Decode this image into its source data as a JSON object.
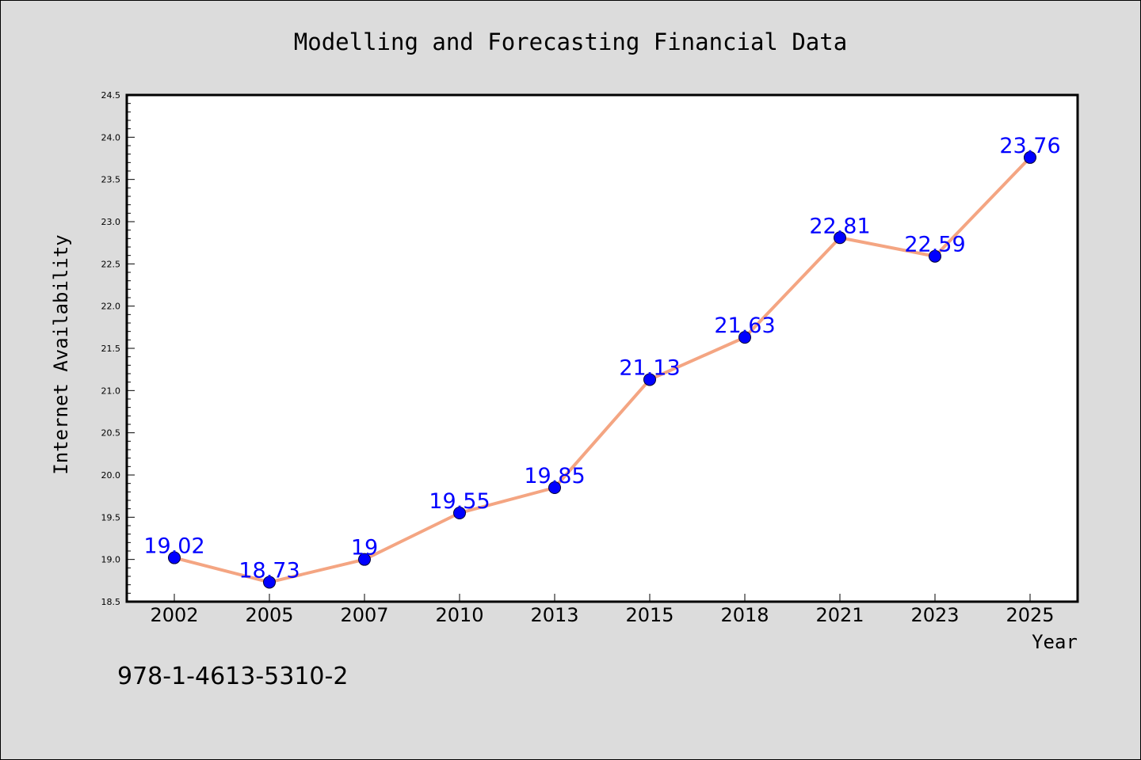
{
  "chart_data": {
    "type": "line",
    "title": "Modelling and Forecasting Financial Data",
    "xlabel": "Year",
    "ylabel": "Internet Availability",
    "categories": [
      "2002",
      "2005",
      "2007",
      "2010",
      "2013",
      "2015",
      "2018",
      "2021",
      "2023",
      "2025"
    ],
    "series": [
      {
        "values": [
          19.02,
          18.73,
          19,
          19.55,
          19.85,
          21.13,
          21.63,
          22.81,
          22.59,
          23.76
        ],
        "line_color": "#f4a582",
        "marker_color": "#0000ff",
        "label_color": "#0000ff"
      }
    ],
    "ylim": [
      18.5,
      24.5
    ],
    "yticks": [
      "18.5",
      "19.0",
      "19.5",
      "20.0",
      "20.5",
      "21.0",
      "21.5",
      "22.0",
      "22.5",
      "23.0",
      "23.5",
      "24.0",
      "24.5"
    ],
    "grid": false,
    "legend": "none"
  },
  "footnote": "978-1-4613-5310-2",
  "colors": {
    "background": "#dcdcdc",
    "plot_background": "#ffffff",
    "axis": "#000000"
  }
}
